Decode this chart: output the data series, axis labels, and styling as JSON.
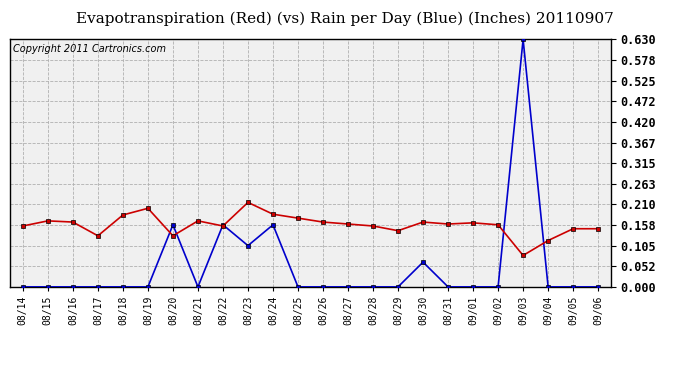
{
  "title": "Evapotranspiration (Red) (vs) Rain per Day (Blue) (Inches) 20110907",
  "copyright": "Copyright 2011 Cartronics.com",
  "dates": [
    "08/14",
    "08/15",
    "08/16",
    "08/17",
    "08/18",
    "08/19",
    "08/20",
    "08/21",
    "08/22",
    "08/23",
    "08/24",
    "08/25",
    "08/26",
    "08/27",
    "08/28",
    "08/29",
    "08/30",
    "08/31",
    "09/01",
    "09/02",
    "09/03",
    "09/04",
    "09/05",
    "09/06"
  ],
  "red_et": [
    0.155,
    0.168,
    0.165,
    0.13,
    0.183,
    0.2,
    0.13,
    0.168,
    0.155,
    0.215,
    0.185,
    0.175,
    0.165,
    0.16,
    0.155,
    0.143,
    0.165,
    0.16,
    0.163,
    0.158,
    0.08,
    0.118,
    0.148,
    0.148
  ],
  "blue_rain": [
    0.0,
    0.0,
    0.0,
    0.0,
    0.0,
    0.0,
    0.158,
    0.0,
    0.158,
    0.105,
    0.158,
    0.0,
    0.0,
    0.0,
    0.0,
    0.0,
    0.063,
    0.0,
    0.0,
    0.0,
    0.63,
    0.0,
    0.0,
    0.0
  ],
  "ylim": [
    0.0,
    0.63
  ],
  "yticks": [
    0.0,
    0.052,
    0.105,
    0.158,
    0.21,
    0.263,
    0.315,
    0.367,
    0.42,
    0.472,
    0.525,
    0.578,
    0.63
  ],
  "red_color": "#cc0000",
  "blue_color": "#0000cc",
  "bg_color": "#ffffff",
  "plot_bg_color": "#f0f0f0",
  "grid_color": "#b0b0b0",
  "title_fontsize": 11,
  "copyright_fontsize": 7
}
